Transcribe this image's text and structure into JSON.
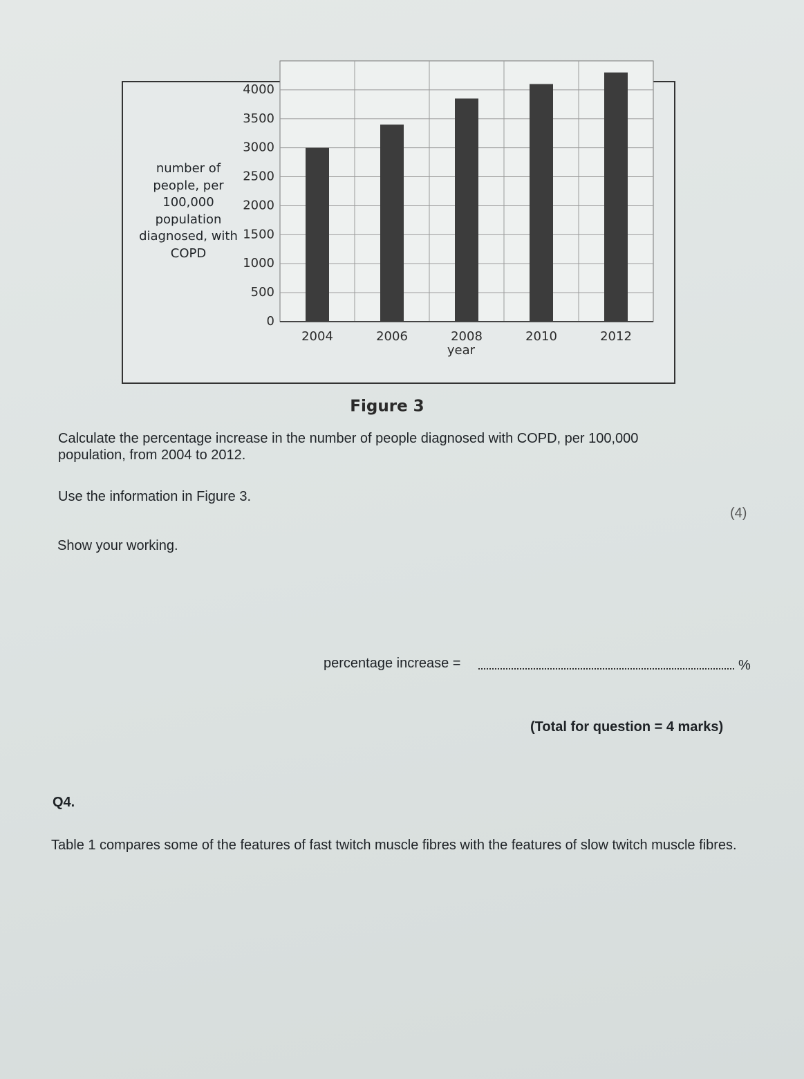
{
  "chart_data": {
    "type": "bar",
    "y_label": "number of people, per 100,000 population diagnosed, with COPD",
    "x_label": "year",
    "categories": [
      "2004",
      "2006",
      "2008",
      "2010",
      "2012"
    ],
    "values": [
      3000,
      3400,
      3850,
      4100,
      4300
    ],
    "color": "#3c3c3c",
    "ylim": [
      0,
      4500
    ],
    "yticks": [
      0,
      500,
      1000,
      1500,
      2000,
      2500,
      3000,
      3500,
      4000
    ],
    "grid": true
  },
  "figure_caption": "Figure 3",
  "question": {
    "text": "Calculate the percentage increase in the number of people diagnosed with COPD, per 100,000 population, from 2004 to 2012.",
    "instruction": "Use the information in Figure 3.",
    "marks": "(4)",
    "working": "Show your working.",
    "answer_label": "percentage increase =",
    "unit": "%",
    "total": "(Total for question = 4 marks)"
  },
  "q4": {
    "number": "Q4.",
    "text": "Table 1 compares some of the features of fast twitch muscle fibres with the features of slow twitch muscle fibres."
  }
}
